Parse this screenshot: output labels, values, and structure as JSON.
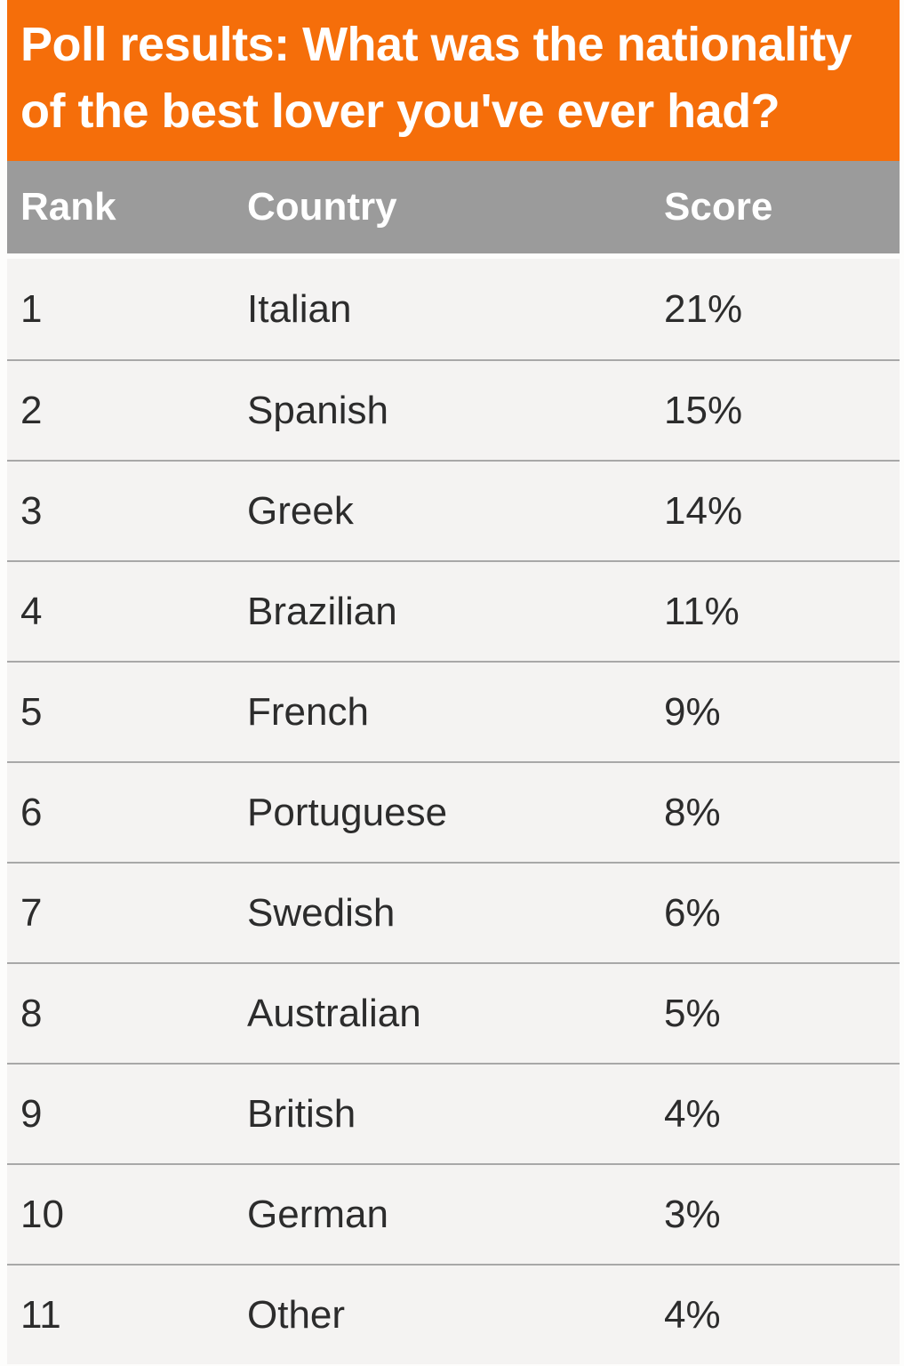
{
  "header": {
    "title": "Poll results: What was the nationality\nof the best lover you've ever had?",
    "bg_color": "#F56E0A",
    "text_color": "#FFFFFF"
  },
  "table": {
    "columns": [
      {
        "key": "rank",
        "label": "Rank"
      },
      {
        "key": "country",
        "label": "Country"
      },
      {
        "key": "score",
        "label": "Score"
      }
    ],
    "header_bg_color": "#9B9B9B",
    "header_text_color": "#FFFFFF",
    "row_bg_color": "#F4F3F2",
    "divider_color": "#A8A8A8",
    "body_text_color": "#2C2C2C",
    "rows": [
      {
        "rank": "1",
        "country": "Italian",
        "score": "21%"
      },
      {
        "rank": "2",
        "country": "Spanish",
        "score": "15%"
      },
      {
        "rank": "3",
        "country": "Greek",
        "score": "14%"
      },
      {
        "rank": "4",
        "country": "Brazilian",
        "score": "11%"
      },
      {
        "rank": "5",
        "country": "French",
        "score": "9%"
      },
      {
        "rank": "6",
        "country": "Portuguese",
        "score": "8%"
      },
      {
        "rank": "7",
        "country": "Swedish",
        "score": "6%"
      },
      {
        "rank": "8",
        "country": "Australian",
        "score": "5%"
      },
      {
        "rank": "9",
        "country": "British",
        "score": "4%"
      },
      {
        "rank": "10",
        "country": "German",
        "score": "3%"
      },
      {
        "rank": "11",
        "country": "Other",
        "score": "4%"
      }
    ]
  },
  "chart_data": {
    "type": "table",
    "title": "Poll results: What was the nationality of the best lover you've ever had?",
    "columns": [
      "Rank",
      "Country",
      "Score"
    ],
    "categories": [
      "Italian",
      "Spanish",
      "Greek",
      "Brazilian",
      "French",
      "Portuguese",
      "Swedish",
      "Australian",
      "British",
      "German",
      "Other"
    ],
    "values": [
      21,
      15,
      14,
      11,
      9,
      8,
      6,
      5,
      4,
      3,
      4
    ],
    "unit": "%",
    "layout": "single table, 11 ranked rows, orange title banner, gray header row"
  }
}
